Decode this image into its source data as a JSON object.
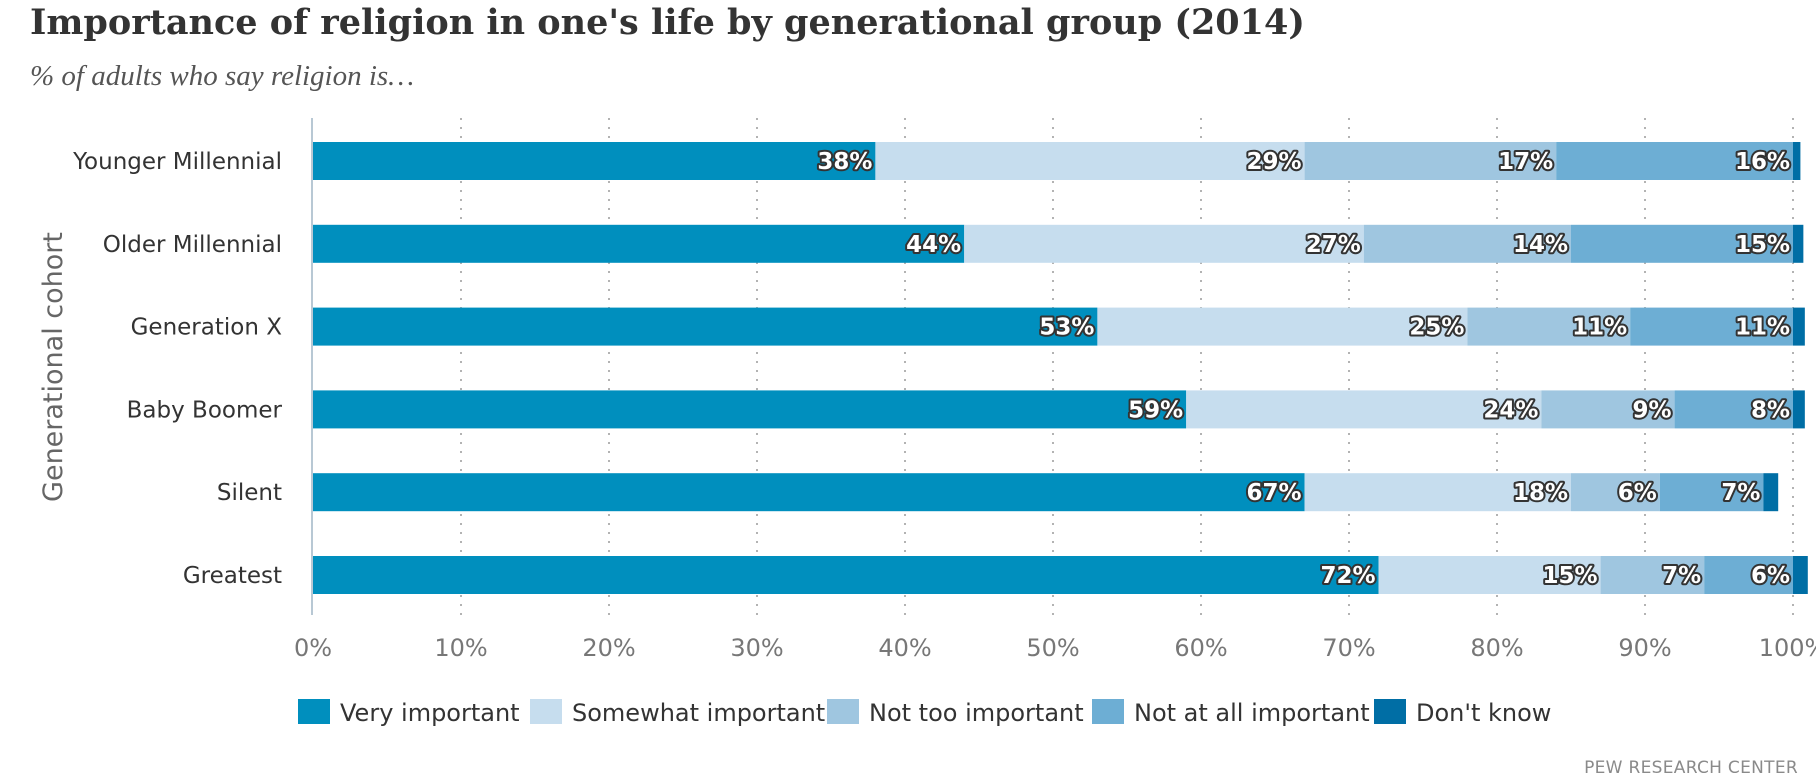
{
  "chart_data": {
    "type": "bar",
    "orientation": "horizontal",
    "stacked": true,
    "title": "Importance of religion in one's life by generational group (2014)",
    "subtitle": "% of adults who say religion is…",
    "ylabel": "Generational cohort",
    "xlabel": "",
    "xlim": [
      0,
      100
    ],
    "xticks": [
      0,
      10,
      20,
      30,
      40,
      50,
      60,
      70,
      80,
      90,
      100
    ],
    "xtick_labels": [
      "0%",
      "10%",
      "20%",
      "30%",
      "40%",
      "50%",
      "60%",
      "70%",
      "80%",
      "90%",
      "100%"
    ],
    "grid": "vertical-dotted",
    "legend_position": "bottom",
    "categories": [
      "Younger Millennial",
      "Older Millennial",
      "Generation X",
      "Baby Boomer",
      "Silent",
      "Greatest"
    ],
    "series": [
      {
        "name": "Very important",
        "color": "#008fbe",
        "values": [
          38,
          44,
          53,
          59,
          67,
          72
        ],
        "labels": [
          "38%",
          "44%",
          "53%",
          "59%",
          "67%",
          "72%"
        ]
      },
      {
        "name": "Somewhat important",
        "color": "#c6ddee",
        "values": [
          29,
          27,
          25,
          24,
          18,
          15
        ],
        "labels": [
          "29%",
          "27%",
          "25%",
          "24%",
          "18%",
          "15%"
        ]
      },
      {
        "name": "Not too important",
        "color": "#9fc6e0",
        "values": [
          17,
          14,
          11,
          9,
          6,
          7
        ],
        "labels": [
          "17%",
          "14%",
          "11%",
          "9%",
          "6%",
          "7%"
        ]
      },
      {
        "name": "Not at all important",
        "color": "#6daed4",
        "values": [
          16,
          15,
          11,
          8,
          7,
          6
        ],
        "labels": [
          "16%",
          "15%",
          "11%",
          "8%",
          "7%",
          "6%"
        ]
      },
      {
        "name": "Don't know",
        "color": "#006ea5",
        "values": [
          0.5,
          0.7,
          0.8,
          0.8,
          1.0,
          1.0
        ],
        "labels": [
          "",
          "",
          "",
          "",
          "",
          ""
        ]
      }
    ],
    "source": "PEW RESEARCH CENTER"
  }
}
